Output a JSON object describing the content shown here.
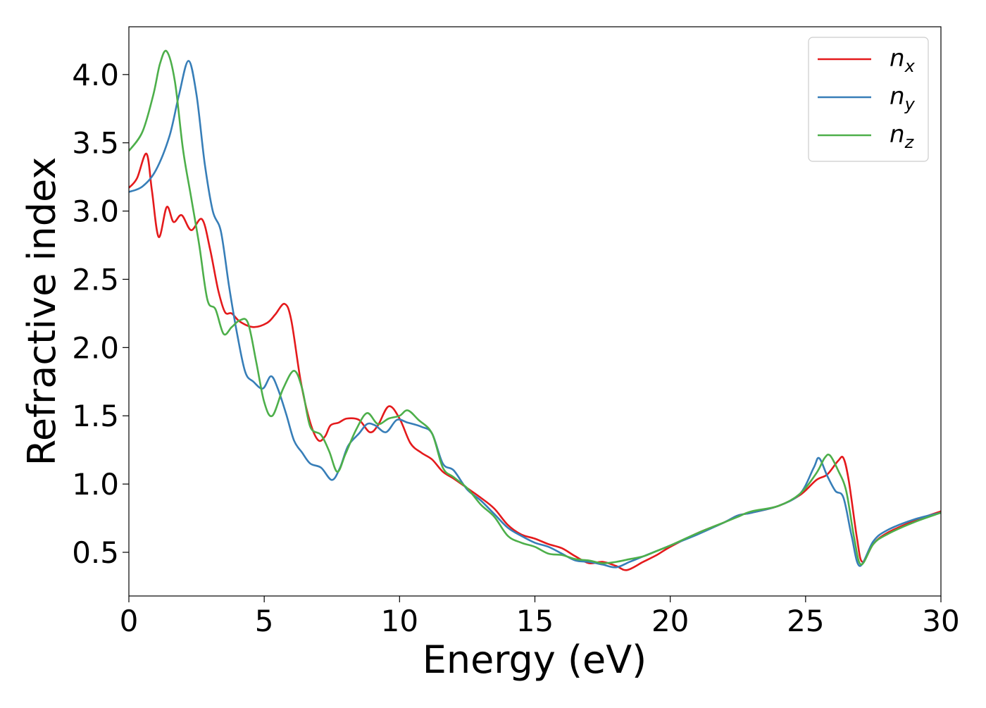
{
  "chart_data": {
    "type": "line",
    "title": "",
    "xlabel": "Energy (eV)",
    "ylabel": "Refractive index",
    "xlim": [
      0,
      30
    ],
    "ylim": [
      0.18,
      4.35
    ],
    "xticks": [
      "0",
      "5",
      "10",
      "15",
      "20",
      "25",
      "30"
    ],
    "yticks": [
      "0.5",
      "1.0",
      "1.5",
      "2.0",
      "2.5",
      "3.0",
      "3.5",
      "4.0"
    ],
    "grid": false,
    "legend_position": "top-right",
    "series": [
      {
        "name": "n_x",
        "legend_base": "n",
        "legend_sub": "x",
        "color": "#e41a1c",
        "points": [
          [
            0.0,
            3.17
          ],
          [
            0.3,
            3.24
          ],
          [
            0.65,
            3.42
          ],
          [
            0.85,
            3.15
          ],
          [
            1.1,
            2.81
          ],
          [
            1.4,
            3.03
          ],
          [
            1.65,
            2.92
          ],
          [
            1.95,
            2.97
          ],
          [
            2.3,
            2.86
          ],
          [
            2.7,
            2.94
          ],
          [
            3.0,
            2.72
          ],
          [
            3.3,
            2.42
          ],
          [
            3.55,
            2.26
          ],
          [
            3.8,
            2.25
          ],
          [
            4.1,
            2.19
          ],
          [
            4.6,
            2.15
          ],
          [
            5.1,
            2.18
          ],
          [
            5.4,
            2.24
          ],
          [
            5.75,
            2.32
          ],
          [
            6.0,
            2.2
          ],
          [
            6.35,
            1.75
          ],
          [
            6.7,
            1.45
          ],
          [
            7.0,
            1.32
          ],
          [
            7.25,
            1.35
          ],
          [
            7.45,
            1.43
          ],
          [
            7.75,
            1.45
          ],
          [
            8.05,
            1.48
          ],
          [
            8.5,
            1.47
          ],
          [
            8.9,
            1.38
          ],
          [
            9.2,
            1.43
          ],
          [
            9.6,
            1.57
          ],
          [
            10.0,
            1.48
          ],
          [
            10.4,
            1.3
          ],
          [
            10.8,
            1.23
          ],
          [
            11.2,
            1.18
          ],
          [
            11.6,
            1.09
          ],
          [
            12.0,
            1.04
          ],
          [
            12.5,
            0.97
          ],
          [
            13.0,
            0.9
          ],
          [
            13.5,
            0.82
          ],
          [
            14.0,
            0.7
          ],
          [
            14.5,
            0.63
          ],
          [
            15.0,
            0.6
          ],
          [
            15.5,
            0.56
          ],
          [
            16.0,
            0.53
          ],
          [
            16.5,
            0.47
          ],
          [
            17.0,
            0.42
          ],
          [
            17.5,
            0.43
          ],
          [
            18.0,
            0.4
          ],
          [
            18.4,
            0.37
          ],
          [
            19.0,
            0.43
          ],
          [
            19.5,
            0.48
          ],
          [
            20.0,
            0.54
          ],
          [
            21.0,
            0.64
          ],
          [
            22.0,
            0.72
          ],
          [
            22.5,
            0.77
          ],
          [
            23.0,
            0.79
          ],
          [
            24.0,
            0.84
          ],
          [
            24.8,
            0.92
          ],
          [
            25.4,
            1.03
          ],
          [
            25.8,
            1.07
          ],
          [
            26.2,
            1.17
          ],
          [
            26.4,
            1.19
          ],
          [
            26.6,
            1.02
          ],
          [
            26.9,
            0.6
          ],
          [
            27.1,
            0.43
          ],
          [
            27.5,
            0.56
          ],
          [
            28.0,
            0.64
          ],
          [
            29.0,
            0.73
          ],
          [
            30.0,
            0.8
          ]
        ]
      },
      {
        "name": "n_y",
        "legend_base": "n",
        "legend_sub": "y",
        "color": "#377eb8",
        "points": [
          [
            0.0,
            3.14
          ],
          [
            0.5,
            3.18
          ],
          [
            1.0,
            3.3
          ],
          [
            1.5,
            3.55
          ],
          [
            1.85,
            3.85
          ],
          [
            2.2,
            4.1
          ],
          [
            2.5,
            3.85
          ],
          [
            2.8,
            3.35
          ],
          [
            3.1,
            3.0
          ],
          [
            3.4,
            2.85
          ],
          [
            3.7,
            2.45
          ],
          [
            4.0,
            2.1
          ],
          [
            4.3,
            1.82
          ],
          [
            4.6,
            1.75
          ],
          [
            4.95,
            1.7
          ],
          [
            5.25,
            1.79
          ],
          [
            5.5,
            1.7
          ],
          [
            5.8,
            1.52
          ],
          [
            6.1,
            1.32
          ],
          [
            6.4,
            1.23
          ],
          [
            6.7,
            1.15
          ],
          [
            7.1,
            1.12
          ],
          [
            7.5,
            1.03
          ],
          [
            7.8,
            1.12
          ],
          [
            8.1,
            1.28
          ],
          [
            8.5,
            1.37
          ],
          [
            8.8,
            1.44
          ],
          [
            9.1,
            1.43
          ],
          [
            9.5,
            1.38
          ],
          [
            9.9,
            1.47
          ],
          [
            10.3,
            1.45
          ],
          [
            10.8,
            1.42
          ],
          [
            11.2,
            1.37
          ],
          [
            11.6,
            1.15
          ],
          [
            12.0,
            1.1
          ],
          [
            12.5,
            0.96
          ],
          [
            13.0,
            0.88
          ],
          [
            13.5,
            0.78
          ],
          [
            14.0,
            0.68
          ],
          [
            14.5,
            0.62
          ],
          [
            15.0,
            0.57
          ],
          [
            15.5,
            0.54
          ],
          [
            16.0,
            0.49
          ],
          [
            16.5,
            0.44
          ],
          [
            17.0,
            0.43
          ],
          [
            17.5,
            0.41
          ],
          [
            18.0,
            0.39
          ],
          [
            18.5,
            0.43
          ],
          [
            19.0,
            0.47
          ],
          [
            19.5,
            0.51
          ],
          [
            20.0,
            0.55
          ],
          [
            21.0,
            0.63
          ],
          [
            22.0,
            0.72
          ],
          [
            22.5,
            0.77
          ],
          [
            23.0,
            0.79
          ],
          [
            24.0,
            0.84
          ],
          [
            24.8,
            0.93
          ],
          [
            25.3,
            1.12
          ],
          [
            25.5,
            1.19
          ],
          [
            25.8,
            1.06
          ],
          [
            26.1,
            0.95
          ],
          [
            26.4,
            0.9
          ],
          [
            26.7,
            0.62
          ],
          [
            27.0,
            0.4
          ],
          [
            27.5,
            0.58
          ],
          [
            28.0,
            0.66
          ],
          [
            29.0,
            0.74
          ],
          [
            30.0,
            0.79
          ]
        ]
      },
      {
        "name": "n_z",
        "legend_base": "n",
        "legend_sub": "z",
        "color": "#4daf4a",
        "points": [
          [
            0.0,
            3.44
          ],
          [
            0.5,
            3.58
          ],
          [
            0.9,
            3.85
          ],
          [
            1.15,
            4.08
          ],
          [
            1.4,
            4.17
          ],
          [
            1.7,
            3.95
          ],
          [
            2.0,
            3.45
          ],
          [
            2.3,
            3.1
          ],
          [
            2.6,
            2.75
          ],
          [
            2.9,
            2.35
          ],
          [
            3.2,
            2.28
          ],
          [
            3.5,
            2.1
          ],
          [
            3.8,
            2.15
          ],
          [
            4.1,
            2.2
          ],
          [
            4.4,
            2.18
          ],
          [
            4.7,
            1.9
          ],
          [
            5.0,
            1.6
          ],
          [
            5.3,
            1.5
          ],
          [
            5.7,
            1.7
          ],
          [
            6.1,
            1.83
          ],
          [
            6.4,
            1.7
          ],
          [
            6.7,
            1.42
          ],
          [
            7.1,
            1.36
          ],
          [
            7.4,
            1.24
          ],
          [
            7.7,
            1.09
          ],
          [
            8.0,
            1.22
          ],
          [
            8.4,
            1.4
          ],
          [
            8.8,
            1.52
          ],
          [
            9.2,
            1.44
          ],
          [
            9.6,
            1.48
          ],
          [
            10.0,
            1.5
          ],
          [
            10.3,
            1.54
          ],
          [
            10.7,
            1.47
          ],
          [
            11.2,
            1.37
          ],
          [
            11.6,
            1.12
          ],
          [
            12.0,
            1.05
          ],
          [
            12.5,
            0.97
          ],
          [
            13.0,
            0.85
          ],
          [
            13.5,
            0.76
          ],
          [
            14.0,
            0.62
          ],
          [
            14.5,
            0.57
          ],
          [
            15.0,
            0.54
          ],
          [
            15.5,
            0.49
          ],
          [
            16.0,
            0.48
          ],
          [
            16.5,
            0.45
          ],
          [
            17.0,
            0.44
          ],
          [
            17.5,
            0.42
          ],
          [
            18.0,
            0.43
          ],
          [
            18.5,
            0.45
          ],
          [
            19.0,
            0.47
          ],
          [
            19.5,
            0.51
          ],
          [
            20.0,
            0.55
          ],
          [
            21.0,
            0.64
          ],
          [
            22.0,
            0.72
          ],
          [
            22.5,
            0.76
          ],
          [
            23.0,
            0.8
          ],
          [
            24.0,
            0.84
          ],
          [
            24.8,
            0.93
          ],
          [
            25.4,
            1.08
          ],
          [
            25.7,
            1.19
          ],
          [
            25.9,
            1.21
          ],
          [
            26.2,
            1.1
          ],
          [
            26.5,
            0.95
          ],
          [
            26.8,
            0.6
          ],
          [
            27.05,
            0.41
          ],
          [
            27.5,
            0.56
          ],
          [
            28.0,
            0.63
          ],
          [
            29.0,
            0.72
          ],
          [
            30.0,
            0.79
          ]
        ]
      }
    ]
  }
}
